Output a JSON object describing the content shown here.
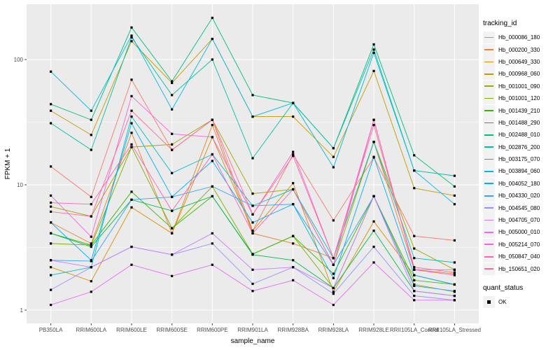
{
  "colors": {
    "panel_bg": "#EBEBEB",
    "grid": "#FFFFFF",
    "axis_text": "#4D4D4D",
    "title_text": "#000000",
    "legend_key_bg": "#F2F2F2",
    "point": "#000000",
    "background": "#FFFFFF"
  },
  "chart_data": {
    "type": "line",
    "title": "",
    "xlabel": "sample_name",
    "ylabel": "FPKM + 1",
    "y_scale": "log10",
    "y_ticks": [
      1,
      10,
      100
    ],
    "y_minor_gridlines": [
      3.162,
      31.62
    ],
    "ylim": [
      0.8,
      280
    ],
    "grid": true,
    "legend_position": "right",
    "legend_title": "tracking_id",
    "point_marker": "black-square",
    "quant_status": {
      "title": "quant_status",
      "items": [
        "OK"
      ]
    },
    "categories": [
      "PB350LA",
      "RRIM600LA",
      "RRIM600LE",
      "RRIM600SE",
      "RRIM600PE",
      "RRIM901LA",
      "RRIM928BA",
      "RRIM928LA",
      "RRIM928LE",
      "RRII105LA_Control",
      "RRII105LA_Stressed"
    ],
    "series": [
      {
        "name": "Hb_000086_180",
        "color": "#F8766D",
        "values": [
          14,
          8.0,
          69,
          19,
          33,
          4.3,
          17.5,
          5.2,
          16.5,
          3.9,
          3.6
        ]
      },
      {
        "name": "Hb_000200_330",
        "color": "#EA8331",
        "values": [
          5.0,
          3.4,
          26,
          4.1,
          30,
          4.1,
          3.4,
          2.6,
          22,
          2.1,
          1.95
        ]
      },
      {
        "name": "Hb_000649_330",
        "color": "#D89000",
        "values": [
          2.2,
          1.7,
          6.6,
          4.1,
          24,
          4.3,
          10.3,
          1.4,
          5.1,
          1.9,
          1.6
        ]
      },
      {
        "name": "Hb_000968_060",
        "color": "#C09B00",
        "values": [
          39,
          25,
          140,
          65,
          146,
          35,
          35,
          16.7,
          81,
          9.4,
          8.2
        ]
      },
      {
        "name": "Hb_001001_090",
        "color": "#A3A500",
        "values": [
          6.7,
          5.6,
          20,
          21,
          33,
          8.5,
          9.2,
          2.3,
          22,
          3.1,
          2.1
        ]
      },
      {
        "name": "Hb_001001_120",
        "color": "#7CAE00",
        "values": [
          3.4,
          3.3,
          20,
          4.5,
          9.7,
          2.8,
          3.9,
          1.5,
          8.1,
          1.6,
          1.4
        ]
      },
      {
        "name": "Hb_001439_210",
        "color": "#39B600",
        "values": [
          4.1,
          3.3,
          8.8,
          4.5,
          8.1,
          2.8,
          3.9,
          1.95,
          8.1,
          1.73,
          1.6
        ]
      },
      {
        "name": "Hb_001488_290",
        "color": "#00BB4E",
        "values": [
          4.1,
          3.2,
          7.6,
          6.2,
          8.1,
          2.77,
          2.5,
          1.5,
          4.3,
          1.42,
          1.3
        ]
      },
      {
        "name": "Hb_002488_010",
        "color": "#00BF7D",
        "values": [
          44,
          33,
          180,
          67,
          215,
          52,
          45,
          19.6,
          132,
          17.2,
          9.7
        ]
      },
      {
        "name": "Hb_002876_200",
        "color": "#00C1A3",
        "values": [
          31,
          19,
          150,
          52,
          100,
          16.3,
          45,
          19.6,
          120,
          13,
          11.8
        ]
      },
      {
        "name": "Hb_003175_070",
        "color": "#00BFC4",
        "values": [
          1.9,
          2.2,
          35,
          12.4,
          17.5,
          6.8,
          9.2,
          2.6,
          22,
          2.6,
          2.4
        ]
      },
      {
        "name": "Hb_003894_060",
        "color": "#00BAE0",
        "values": [
          80,
          39,
          155,
          40,
          146,
          35,
          45,
          13.8,
          113,
          13,
          7.0
        ]
      },
      {
        "name": "Hb_004052_180",
        "color": "#00B0F6",
        "values": [
          5.0,
          2.5,
          31,
          8.0,
          15.5,
          5.0,
          7.0,
          1.8,
          16.7,
          1.9,
          1.6
        ]
      },
      {
        "name": "Hb_004330_020",
        "color": "#35A2FF",
        "values": [
          2.5,
          2.46,
          7.6,
          8.0,
          9.7,
          6.8,
          7.0,
          2.3,
          8.1,
          1.56,
          1.42
        ]
      },
      {
        "name": "Hb_004545_080",
        "color": "#9590FF",
        "values": [
          1.45,
          2.2,
          3.2,
          2.77,
          3.4,
          1.62,
          2.2,
          1.35,
          3.2,
          1.3,
          1.2
        ]
      },
      {
        "name": "Hb_004705_070",
        "color": "#C77CFF",
        "values": [
          2.5,
          2.2,
          3.2,
          2.77,
          4.1,
          2.1,
          2.2,
          1.5,
          8.1,
          1.42,
          1.3
        ]
      },
      {
        "name": "Hb_005000_010",
        "color": "#E76BF3",
        "values": [
          1.1,
          1.4,
          2.3,
          1.87,
          2.3,
          1.42,
          1.73,
          1.1,
          2.4,
          1.2,
          1.2
        ]
      },
      {
        "name": "Hb_005214_070",
        "color": "#FA62DB",
        "values": [
          8.2,
          3.85,
          51,
          25.5,
          24,
          5.8,
          18.3,
          2.6,
          33,
          2.1,
          2.1
        ]
      },
      {
        "name": "Hb_050847_040",
        "color": "#FF62BC",
        "values": [
          7.2,
          7.0,
          21,
          6.2,
          17.5,
          4.1,
          9.2,
          2.3,
          33,
          2.1,
          1.9
        ]
      },
      {
        "name": "Hb_150651_020",
        "color": "#FF6A98",
        "values": [
          6.1,
          5.6,
          39,
          19,
          33,
          5.8,
          17,
          2.6,
          30,
          2.2,
          2.0
        ]
      }
    ]
  }
}
